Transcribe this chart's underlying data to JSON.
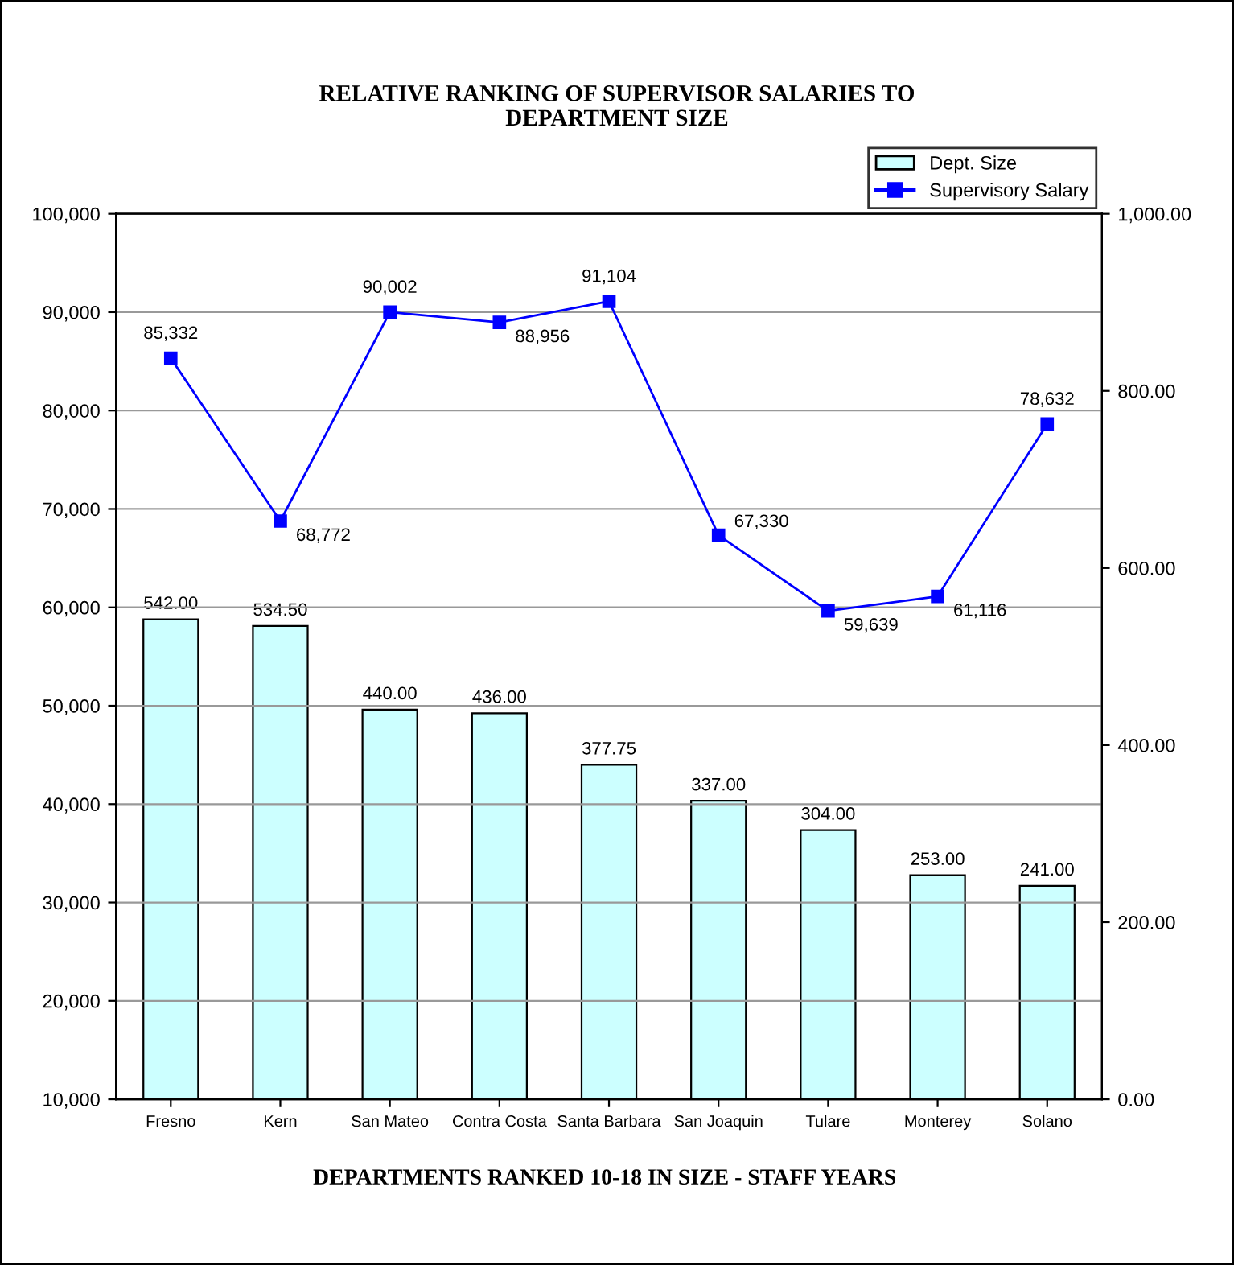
{
  "chart_data": {
    "type": "bar",
    "title": "RELATIVE RANKING OF SUPERVISOR SALARIES TO\nDEPARTMENT SIZE",
    "xlabel": "DEPARTMENTS RANKED 10-18 IN SIZE - STAFF YEARS",
    "categories": [
      "Fresno",
      "Kern",
      "San Mateo",
      "Contra Costa",
      "Santa Barbara",
      "San Joaquin",
      "Tulare",
      "Monterey",
      "Solano"
    ],
    "series": [
      {
        "name": "Dept. Size",
        "type": "bar",
        "axis": "y2",
        "color": "#ccffff",
        "values": [
          542,
          534.5,
          440,
          436,
          377.75,
          337,
          304,
          253,
          241
        ],
        "value_labels": [
          "542.00",
          "534.50",
          "440.00",
          "436.00",
          "377.75",
          "337.00",
          "304.00",
          "253.00",
          "241.00"
        ]
      },
      {
        "name": "Supervisory Salary",
        "type": "line",
        "axis": "y",
        "color": "#0000ff",
        "marker": "square",
        "values": [
          85332,
          68772,
          90002,
          88956,
          91104,
          67330,
          59639,
          61116,
          78632
        ],
        "value_labels": [
          "85,332",
          "68,772",
          "90,002",
          "88,956",
          "91,104",
          "67,330",
          "59,639",
          "61,116",
          "78,632"
        ]
      }
    ],
    "ylim": [
      10000,
      100000
    ],
    "yticks": [
      {
        "value": 10000,
        "label": "10,000"
      },
      {
        "value": 20000,
        "label": "20,000"
      },
      {
        "value": 30000,
        "label": "30,000"
      },
      {
        "value": 40000,
        "label": "40,000"
      },
      {
        "value": 50000,
        "label": "50,000"
      },
      {
        "value": 60000,
        "label": "60,000"
      },
      {
        "value": 70000,
        "label": "70,000"
      },
      {
        "value": 80000,
        "label": "80,000"
      },
      {
        "value": 90000,
        "label": "90,000"
      },
      {
        "value": 100000,
        "label": "100,000"
      }
    ],
    "y2lim": [
      0,
      1000
    ],
    "y2ticks": [
      {
        "value": 0,
        "label": "0.00"
      },
      {
        "value": 200,
        "label": "200.00"
      },
      {
        "value": 400,
        "label": "400.00"
      },
      {
        "value": 600,
        "label": "600.00"
      },
      {
        "value": 800,
        "label": "800.00"
      },
      {
        "value": 1000,
        "label": "1,000.00"
      }
    ],
    "grid": "y",
    "legend": "top right"
  }
}
